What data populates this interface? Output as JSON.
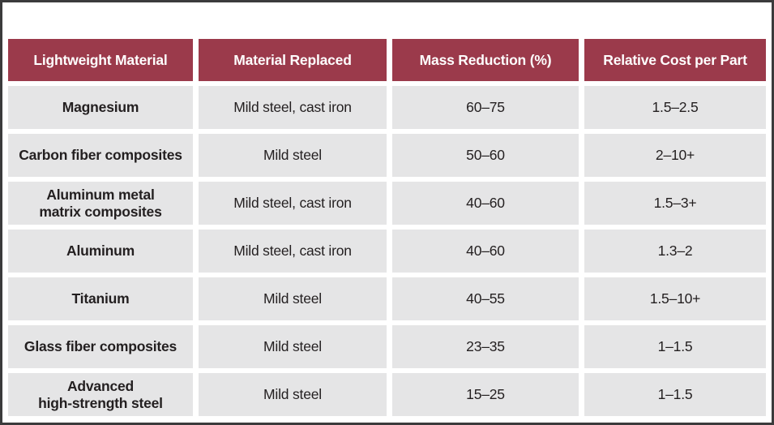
{
  "table": {
    "headers": [
      "Lightweight Material",
      "Material Replaced",
      "Mass Reduction (%)",
      "Relative Cost per Part"
    ],
    "rows": [
      {
        "material": "Magnesium",
        "replaced": "Mild steel, cast iron",
        "mass_reduction": "60–75",
        "relative_cost": "1.5–2.5"
      },
      {
        "material": "Carbon fiber composites",
        "replaced": "Mild steel",
        "mass_reduction": "50–60",
        "relative_cost": "2–10+"
      },
      {
        "material": "Aluminum metal\nmatrix composites",
        "replaced": "Mild steel, cast iron",
        "mass_reduction": "40–60",
        "relative_cost": "1.5–3+"
      },
      {
        "material": "Aluminum",
        "replaced": "Mild steel, cast iron",
        "mass_reduction": "40–60",
        "relative_cost": "1.3–2"
      },
      {
        "material": "Titanium",
        "replaced": "Mild steel",
        "mass_reduction": "40–55",
        "relative_cost": "1.5–10+"
      },
      {
        "material": "Glass fiber composites",
        "replaced": "Mild steel",
        "mass_reduction": "23–35",
        "relative_cost": "1–1.5"
      },
      {
        "material": "Advanced\nhigh-strength steel",
        "replaced": "Mild steel",
        "mass_reduction": "15–25",
        "relative_cost": "1–1.5"
      }
    ]
  },
  "colors": {
    "header_bg": "#9B3A4B",
    "header_text": "#FFFFFF",
    "row_bg": "#E5E5E6",
    "text": "#231F20",
    "frame_border": "#3B3B3C"
  },
  "chart_data": {
    "type": "table",
    "columns": [
      "Lightweight Material",
      "Material Replaced",
      "Mass Reduction (%)",
      "Relative Cost per Part"
    ],
    "rows": [
      [
        "Magnesium",
        "Mild steel, cast iron",
        "60–75",
        "1.5–2.5"
      ],
      [
        "Carbon fiber composites",
        "Mild steel",
        "50–60",
        "2–10+"
      ],
      [
        "Aluminum metal matrix composites",
        "Mild steel, cast iron",
        "40–60",
        "1.5–3+"
      ],
      [
        "Aluminum",
        "Mild steel, cast iron",
        "40–60",
        "1.3–2"
      ],
      [
        "Titanium",
        "Mild steel",
        "40–55",
        "1.5–10+"
      ],
      [
        "Glass fiber composites",
        "Mild steel",
        "23–35",
        "1–1.5"
      ],
      [
        "Advanced high-strength steel",
        "Mild steel",
        "15–25",
        "1–1.5"
      ]
    ]
  }
}
